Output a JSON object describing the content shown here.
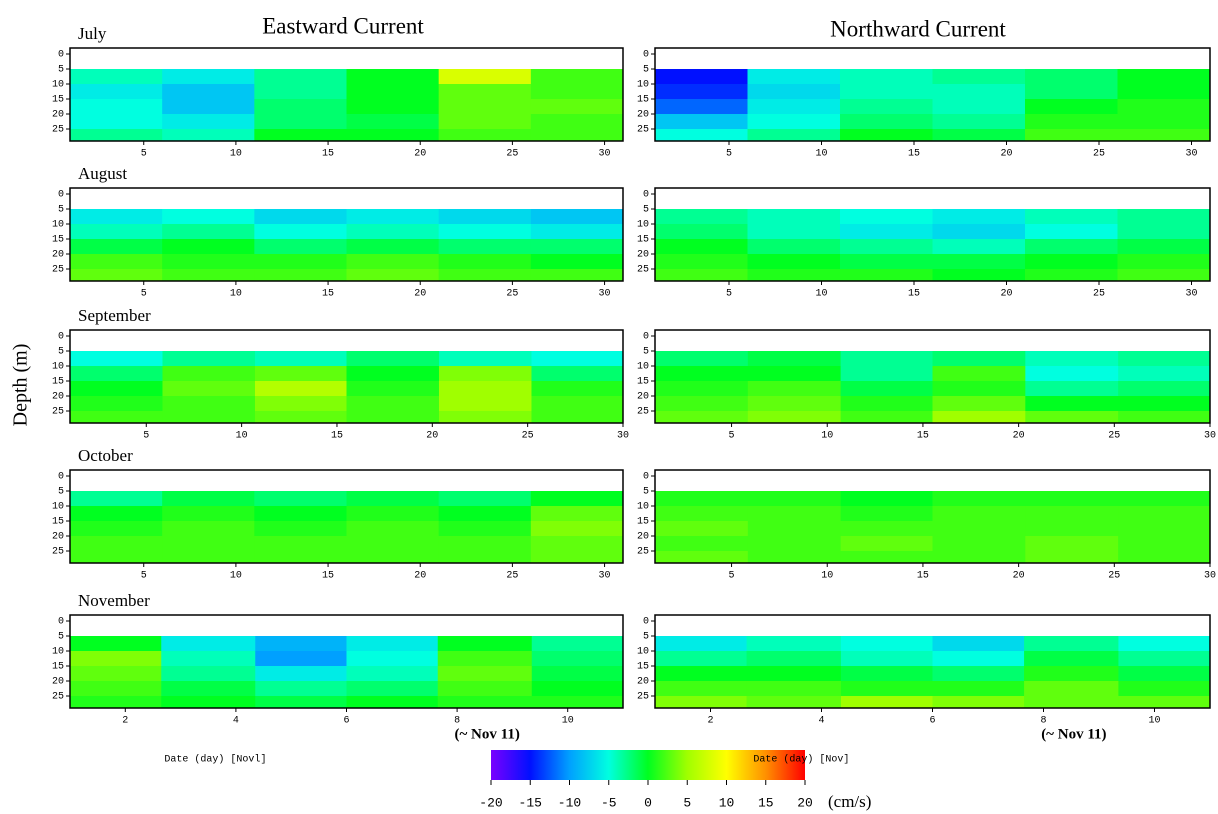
{
  "column_titles": [
    "Eastward Current",
    "Northward Current"
  ],
  "ylabel": "Depth (m)",
  "colorbar": {
    "lim": [
      -20,
      20
    ],
    "ticks": [
      -20,
      -15,
      -10,
      -5,
      0,
      5,
      10,
      15,
      20
    ],
    "unit": "(cm/s)",
    "colors": [
      "#7a00ff",
      "#0010ff",
      "#00a0ff",
      "#00ffe0",
      "#00ff20",
      "#a0ff00",
      "#ffff00",
      "#ff9000",
      "#ff0000"
    ]
  },
  "chart_data": [
    {
      "type": "heatmap",
      "title": "July",
      "xlim": [
        1,
        31
      ],
      "xticks": [
        5,
        10,
        15,
        20,
        25,
        30
      ],
      "ylim": [
        -2,
        29
      ],
      "yticks": [
        0,
        5,
        10,
        15,
        20,
        25
      ],
      "y_inverted": true,
      "x": [
        3.5,
        8.5,
        13.5,
        18.5,
        23.5,
        28.5
      ],
      "y": [
        2.5,
        7.5,
        12.5,
        17.5,
        22.5,
        27.5
      ],
      "values": [
        [
          null,
          null,
          null,
          null,
          null,
          null
        ],
        [
          -4,
          -6,
          -3,
          0,
          8,
          2
        ],
        [
          -6,
          -8,
          -3,
          0,
          3,
          2
        ],
        [
          -5,
          -8,
          -2,
          0,
          3,
          3
        ],
        [
          -5,
          -6,
          -2,
          -1,
          3,
          2
        ],
        [
          -3,
          -4,
          0,
          0,
          2,
          2
        ]
      ]
    },
    {
      "type": "heatmap",
      "xlim": [
        1,
        31
      ],
      "xticks": [
        5,
        10,
        15,
        20,
        25,
        30
      ],
      "ylim": [
        -2,
        29
      ],
      "yticks": [
        0,
        5,
        10,
        15,
        20,
        25
      ],
      "y_inverted": true,
      "x": [
        3.5,
        8.5,
        13.5,
        18.5,
        23.5,
        28.5
      ],
      "y": [
        2.5,
        7.5,
        12.5,
        17.5,
        22.5,
        27.5
      ],
      "values": [
        [
          null,
          null,
          null,
          null,
          null,
          null
        ],
        [
          -15,
          -6,
          -4,
          -3,
          -2,
          0
        ],
        [
          -14,
          -7,
          -4,
          -4,
          -2,
          0
        ],
        [
          -12,
          -6,
          -3,
          -4,
          0,
          1
        ],
        [
          -8,
          -5,
          -2,
          -3,
          1,
          1
        ],
        [
          -5,
          -3,
          0,
          -1,
          2,
          2
        ]
      ]
    },
    {
      "type": "heatmap",
      "title": "August",
      "xlim": [
        1,
        31
      ],
      "xticks": [
        5,
        10,
        15,
        20,
        25,
        30
      ],
      "ylim": [
        -2,
        29
      ],
      "yticks": [
        0,
        5,
        10,
        15,
        20,
        25
      ],
      "y_inverted": true,
      "x": [
        3.5,
        8.5,
        13.5,
        18.5,
        23.5,
        28.5
      ],
      "y": [
        2.5,
        7.5,
        12.5,
        17.5,
        22.5,
        27.5
      ],
      "values": [
        [
          null,
          null,
          null,
          null,
          null,
          null
        ],
        [
          -6,
          -5,
          -7,
          -6,
          -7,
          -8
        ],
        [
          -4,
          -3,
          -5,
          -4,
          -5,
          -6
        ],
        [
          -1,
          0,
          -2,
          -1,
          -2,
          -2
        ],
        [
          2,
          1,
          1,
          2,
          1,
          0
        ],
        [
          3,
          2,
          2,
          3,
          2,
          2
        ]
      ]
    },
    {
      "type": "heatmap",
      "xlim": [
        1,
        31
      ],
      "xticks": [
        5,
        10,
        15,
        20,
        25,
        30
      ],
      "ylim": [
        -2,
        29
      ],
      "yticks": [
        0,
        5,
        10,
        15,
        20,
        25
      ],
      "y_inverted": true,
      "x": [
        3.5,
        8.5,
        13.5,
        18.5,
        23.5,
        28.5
      ],
      "y": [
        2.5,
        7.5,
        12.5,
        17.5,
        22.5,
        27.5
      ],
      "values": [
        [
          null,
          null,
          null,
          null,
          null,
          null
        ],
        [
          -3,
          -4,
          -5,
          -6,
          -4,
          -3
        ],
        [
          -2,
          -4,
          -6,
          -7,
          -5,
          -3
        ],
        [
          0,
          -2,
          -3,
          -4,
          -2,
          -1
        ],
        [
          1,
          0,
          -1,
          -1,
          0,
          1
        ],
        [
          2,
          1,
          1,
          0,
          1,
          2
        ]
      ]
    },
    {
      "type": "heatmap",
      "title": "September",
      "xlim": [
        1,
        30
      ],
      "xticks": [
        5,
        10,
        15,
        20,
        25,
        30
      ],
      "ylim": [
        -2,
        29
      ],
      "yticks": [
        0,
        5,
        10,
        15,
        20,
        25
      ],
      "y_inverted": true,
      "x": [
        3.4,
        8.3,
        13.1,
        17.9,
        22.8,
        27.6
      ],
      "y": [
        2.5,
        7.5,
        12.5,
        17.5,
        22.5,
        27.5
      ],
      "values": [
        [
          null,
          null,
          null,
          null,
          null,
          null
        ],
        [
          -5,
          -3,
          -4,
          -2,
          -4,
          -5
        ],
        [
          -2,
          2,
          3,
          0,
          4,
          -2
        ],
        [
          0,
          3,
          6,
          1,
          5,
          1
        ],
        [
          1,
          2,
          4,
          2,
          5,
          2
        ],
        [
          2,
          2,
          3,
          2,
          4,
          2
        ]
      ]
    },
    {
      "type": "heatmap",
      "xlim": [
        1,
        30
      ],
      "xticks": [
        5,
        10,
        15,
        20,
        25,
        30
      ],
      "ylim": [
        -2,
        29
      ],
      "yticks": [
        0,
        5,
        10,
        15,
        20,
        25
      ],
      "y_inverted": true,
      "x": [
        3.4,
        8.3,
        13.1,
        17.9,
        22.8,
        27.6
      ],
      "y": [
        2.5,
        7.5,
        12.5,
        17.5,
        22.5,
        27.5
      ],
      "values": [
        [
          null,
          null,
          null,
          null,
          null,
          null
        ],
        [
          -2,
          -1,
          -3,
          -2,
          -4,
          -3
        ],
        [
          0,
          0,
          -3,
          2,
          -5,
          -4
        ],
        [
          1,
          2,
          -1,
          1,
          -3,
          -2
        ],
        [
          2,
          3,
          1,
          3,
          0,
          0
        ],
        [
          3,
          4,
          2,
          5,
          3,
          2
        ]
      ]
    },
    {
      "type": "heatmap",
      "title": "October",
      "xlim": [
        1,
        31
      ],
      "xticks": [
        5,
        10,
        15,
        20,
        25,
        30
      ],
      "ylim": [
        -2,
        29
      ],
      "yticks": [
        0,
        5,
        10,
        15,
        20,
        25
      ],
      "y_inverted": true,
      "x": [
        3.5,
        8.5,
        13.5,
        18.5,
        23.5,
        28.5
      ],
      "y": [
        2.5,
        7.5,
        12.5,
        17.5,
        22.5,
        27.5
      ],
      "values": [
        [
          null,
          null,
          null,
          null,
          null,
          null
        ],
        [
          -3,
          -1,
          -2,
          -1,
          -2,
          0
        ],
        [
          0,
          1,
          0,
          1,
          0,
          3
        ],
        [
          1,
          2,
          1,
          2,
          1,
          4
        ],
        [
          2,
          2,
          2,
          2,
          2,
          3
        ],
        [
          2,
          2,
          2,
          2,
          2,
          3
        ]
      ]
    },
    {
      "type": "heatmap",
      "xlim": [
        1,
        30
      ],
      "xticks": [
        5,
        10,
        15,
        20,
        25,
        30
      ],
      "ylim": [
        -2,
        29
      ],
      "yticks": [
        0,
        5,
        10,
        15,
        20,
        25
      ],
      "y_inverted": true,
      "x": [
        3.4,
        8.3,
        13.1,
        17.9,
        22.8,
        27.6
      ],
      "y": [
        2.5,
        7.5,
        12.5,
        17.5,
        22.5,
        27.5
      ],
      "values": [
        [
          null,
          null,
          null,
          null,
          null,
          null
        ],
        [
          1,
          1,
          0,
          1,
          1,
          1
        ],
        [
          2,
          2,
          1,
          2,
          2,
          2
        ],
        [
          3,
          2,
          2,
          2,
          2,
          2
        ],
        [
          2,
          2,
          3,
          2,
          3,
          2
        ],
        [
          3,
          2,
          2,
          2,
          3,
          2
        ]
      ]
    },
    {
      "type": "heatmap",
      "title": "November",
      "xlim": [
        1,
        11
      ],
      "xticks": [
        2,
        4,
        6,
        8,
        10
      ],
      "ylim": [
        -2,
        29
      ],
      "yticks": [
        0,
        5,
        10,
        15,
        20,
        25
      ],
      "y_inverted": true,
      "xlabel": "Date (day) [Novl]",
      "annotation": "(~ Nov 11)",
      "x": [
        1.8,
        3.5,
        5.2,
        6.8,
        8.5,
        10.2
      ],
      "y": [
        2.5,
        7.5,
        12.5,
        17.5,
        22.5,
        27.5
      ],
      "values": [
        [
          null,
          null,
          null,
          null,
          null,
          null
        ],
        [
          0,
          -6,
          -9,
          -6,
          0,
          -3
        ],
        [
          4,
          -4,
          -10,
          -5,
          2,
          -2
        ],
        [
          3,
          -3,
          -6,
          -4,
          3,
          -1
        ],
        [
          2,
          -1,
          -3,
          -2,
          2,
          0
        ],
        [
          1,
          0,
          -1,
          0,
          1,
          1
        ]
      ]
    },
    {
      "type": "heatmap",
      "xlim": [
        1,
        11
      ],
      "xticks": [
        2,
        4,
        6,
        8,
        10
      ],
      "ylim": [
        -2,
        29
      ],
      "yticks": [
        0,
        5,
        10,
        15,
        20,
        25
      ],
      "y_inverted": true,
      "xlabel": "Date (day) [Nov]",
      "annotation": "(~ Nov 11)",
      "x": [
        1.8,
        3.5,
        5.2,
        6.8,
        8.5,
        10.2
      ],
      "y": [
        2.5,
        7.5,
        12.5,
        17.5,
        22.5,
        27.5
      ],
      "values": [
        [
          null,
          null,
          null,
          null,
          null,
          null
        ],
        [
          -6,
          -4,
          -5,
          -7,
          -3,
          -5
        ],
        [
          -3,
          -2,
          -4,
          -5,
          -1,
          -3
        ],
        [
          0,
          0,
          -1,
          -2,
          1,
          -1
        ],
        [
          2,
          2,
          1,
          1,
          3,
          1
        ],
        [
          4,
          3,
          5,
          4,
          3,
          3
        ]
      ]
    }
  ]
}
